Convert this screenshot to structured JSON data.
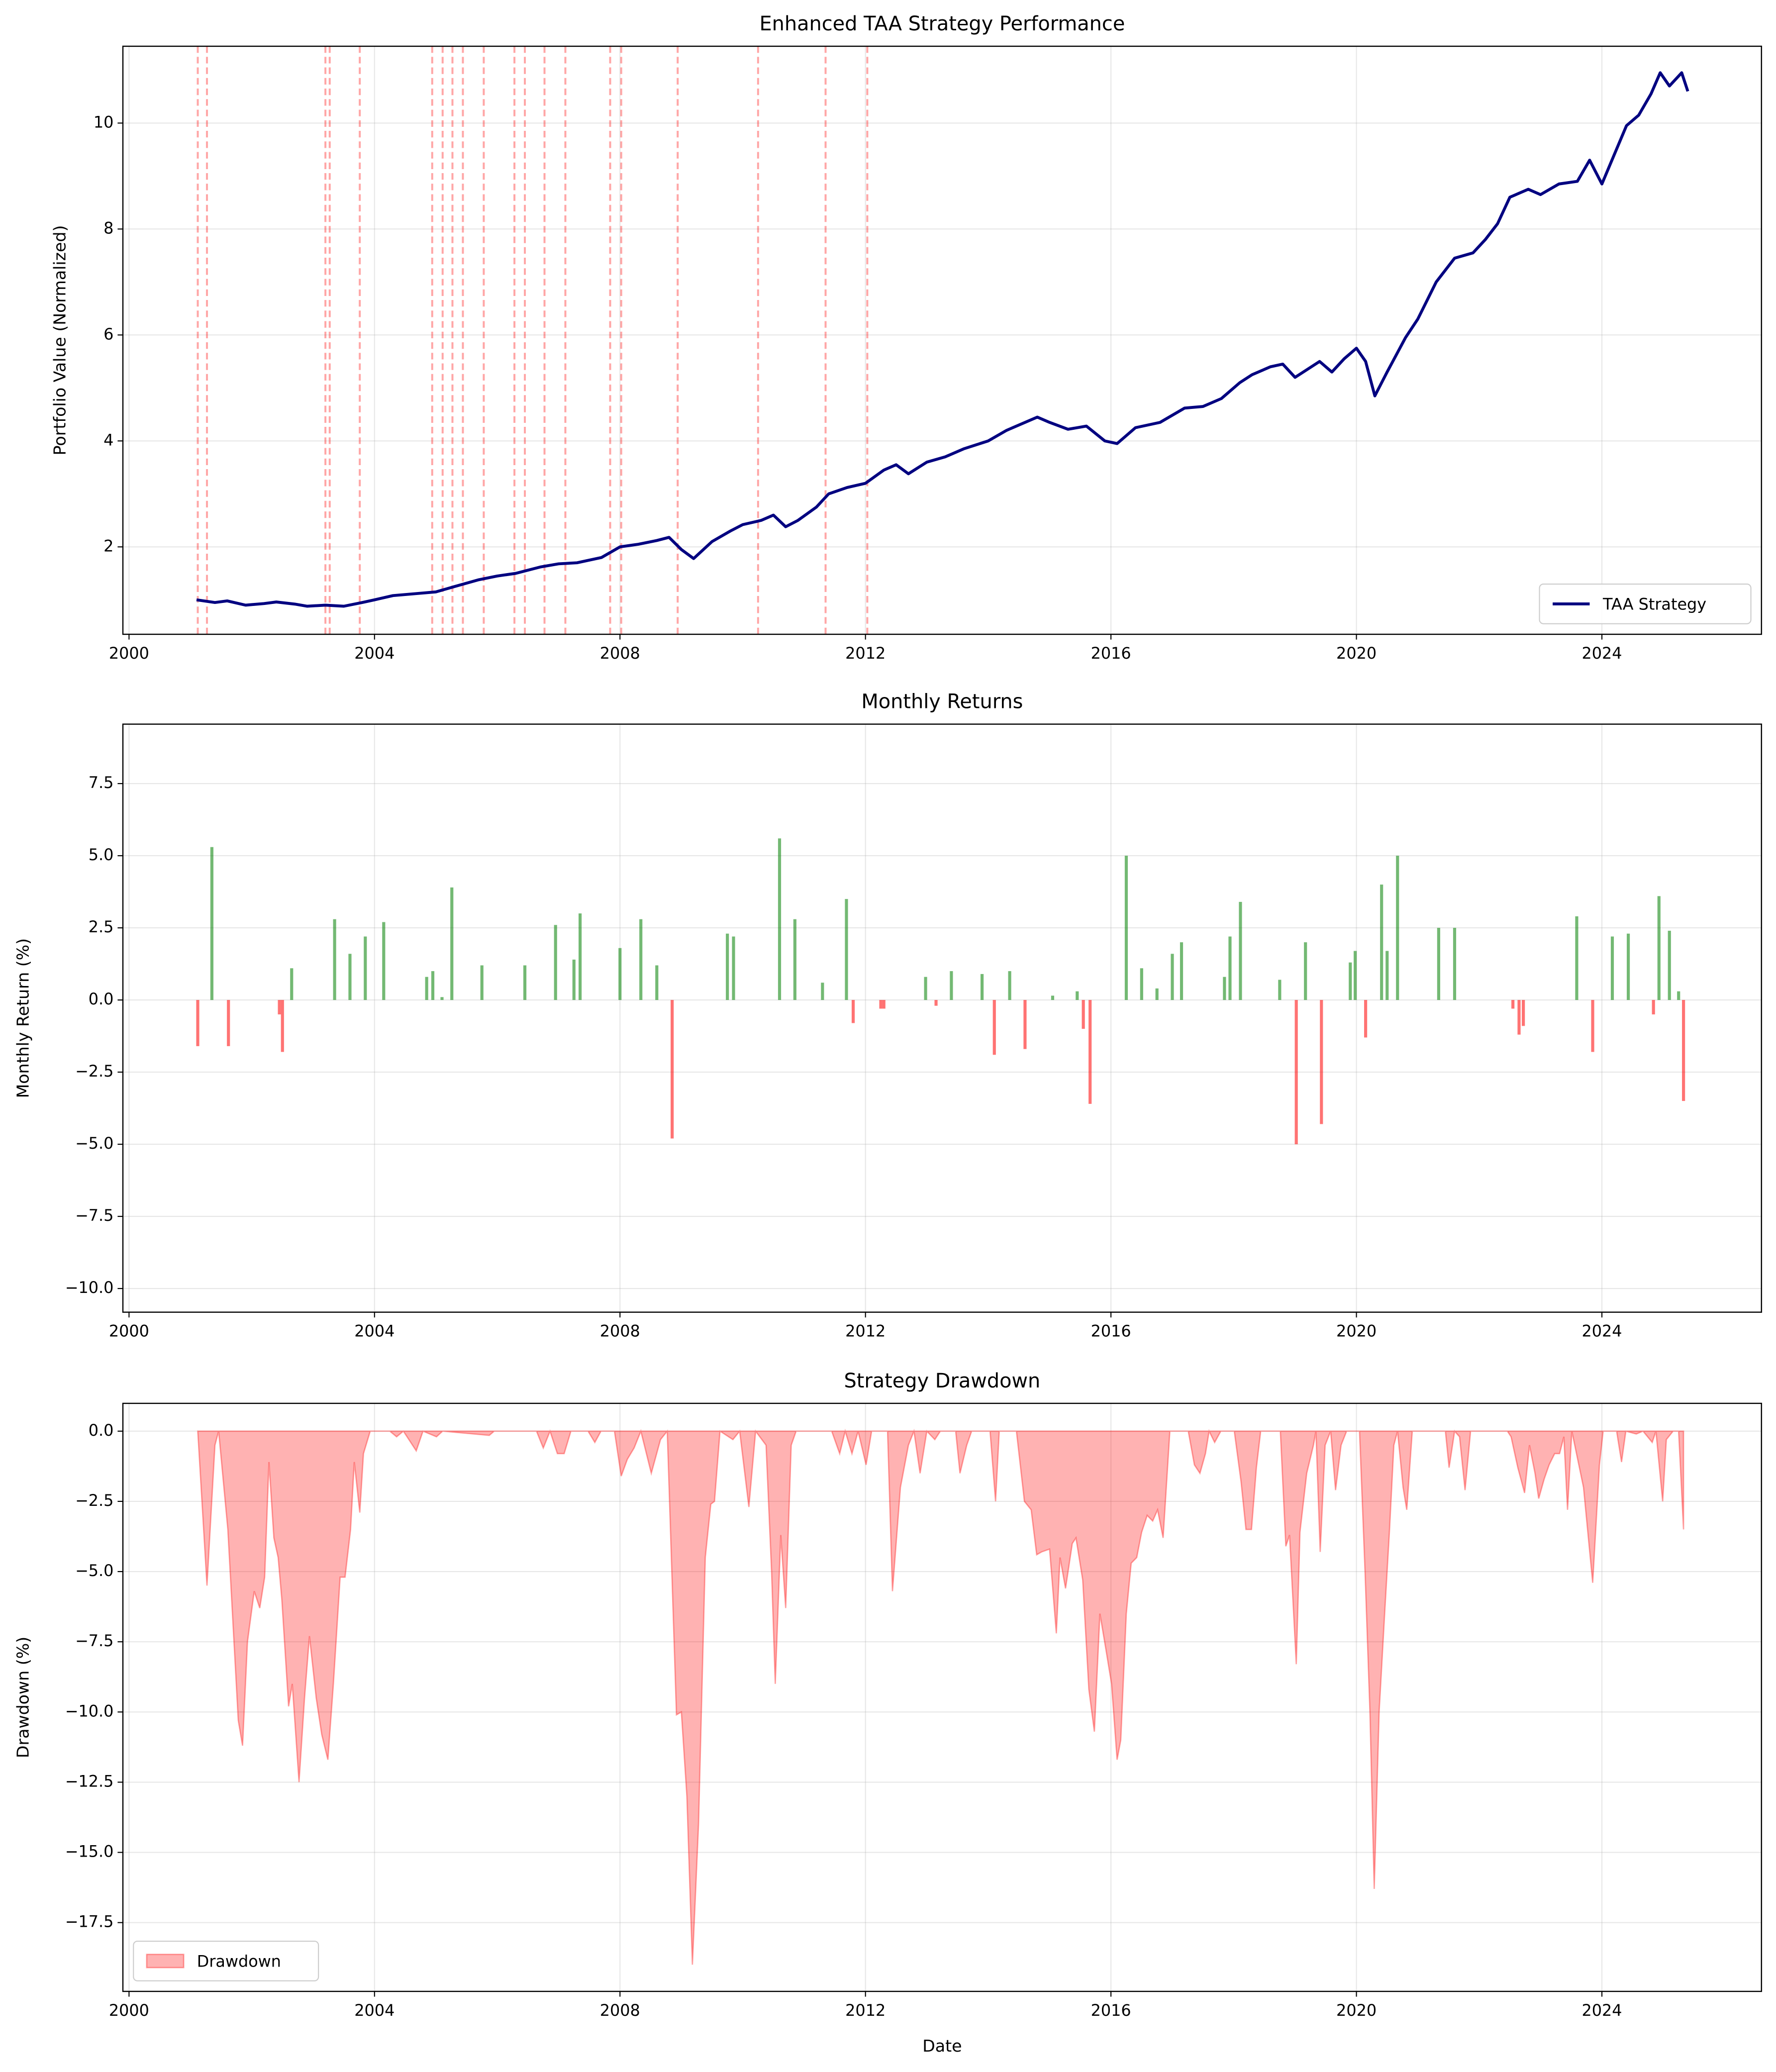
{
  "chart_data": [
    {
      "type": "line",
      "title": "Enhanced TAA Strategy Performance",
      "ylabel": "Portfolio Value (Normalized)",
      "x": [
        2001.1,
        2001.4,
        2001.6,
        2001.9,
        2002.2,
        2002.4,
        2002.7,
        2002.9,
        2003.2,
        2003.5,
        2003.8,
        2004.0,
        2004.3,
        2004.7,
        2005.0,
        2005.3,
        2005.7,
        2006.0,
        2006.3,
        2006.7,
        2007.0,
        2007.3,
        2007.7,
        2008.0,
        2008.3,
        2008.6,
        2008.8,
        2009.0,
        2009.2,
        2009.5,
        2009.8,
        2010.0,
        2010.3,
        2010.5,
        2010.7,
        2010.9,
        2011.2,
        2011.4,
        2011.7,
        2012.0,
        2012.3,
        2012.5,
        2012.7,
        2013.0,
        2013.3,
        2013.6,
        2014.0,
        2014.3,
        2014.6,
        2014.8,
        2015.0,
        2015.3,
        2015.6,
        2015.9,
        2016.1,
        2016.4,
        2016.8,
        2017.2,
        2017.5,
        2017.8,
        2018.1,
        2018.3,
        2018.6,
        2018.8,
        2019.0,
        2019.2,
        2019.4,
        2019.6,
        2019.8,
        2020.0,
        2020.15,
        2020.3,
        2020.5,
        2020.8,
        2021.0,
        2021.3,
        2021.6,
        2021.9,
        2022.1,
        2022.3,
        2022.5,
        2022.8,
        2023.0,
        2023.3,
        2023.6,
        2023.8,
        2024.0,
        2024.2,
        2024.4,
        2024.6,
        2024.8,
        2024.95,
        2025.1,
        2025.3,
        2025.4
      ],
      "series": [
        {
          "name": "TAA Strategy",
          "color": "navy",
          "values": [
            1.0,
            0.95,
            0.98,
            0.9,
            0.93,
            0.96,
            0.92,
            0.88,
            0.9,
            0.88,
            0.95,
            1.0,
            1.08,
            1.12,
            1.15,
            1.25,
            1.38,
            1.45,
            1.5,
            1.62,
            1.68,
            1.7,
            1.8,
            2.0,
            2.05,
            2.12,
            2.18,
            1.95,
            1.78,
            2.1,
            2.3,
            2.42,
            2.5,
            2.6,
            2.38,
            2.5,
            2.75,
            3.0,
            3.12,
            3.2,
            3.45,
            3.55,
            3.38,
            3.6,
            3.7,
            3.85,
            4.0,
            4.2,
            4.35,
            4.45,
            4.35,
            4.22,
            4.28,
            4.0,
            3.95,
            4.25,
            4.35,
            4.62,
            4.65,
            4.8,
            5.1,
            5.25,
            5.4,
            5.45,
            5.2,
            5.35,
            5.5,
            5.3,
            5.55,
            5.75,
            5.5,
            4.85,
            5.3,
            5.95,
            6.3,
            7.0,
            7.45,
            7.55,
            7.8,
            8.1,
            8.6,
            8.75,
            8.65,
            8.85,
            8.9,
            9.3,
            8.85,
            9.4,
            9.95,
            10.15,
            10.55,
            10.95,
            10.7,
            10.95,
            10.6
          ]
        }
      ],
      "vlines": {
        "color": "red",
        "x": [
          2001.12,
          2001.27,
          2003.2,
          2003.27,
          2003.76,
          2004.94,
          2005.11,
          2005.27,
          2005.44,
          2005.78,
          2006.28,
          2006.45,
          2006.77,
          2007.11,
          2007.84,
          2008.02,
          2008.94,
          2010.25,
          2011.35,
          2012.03
        ]
      },
      "xlim": [
        1999.9,
        2026.6
      ],
      "xticks": [
        2000,
        2004,
        2008,
        2012,
        2016,
        2020,
        2024
      ],
      "ylim": [
        0.35,
        11.45
      ],
      "yticks": [
        2,
        4,
        6,
        8,
        10
      ],
      "grid": true,
      "legend": "lower right"
    },
    {
      "type": "bar",
      "title": "Monthly Returns",
      "ylabel": "Monthly Return (%)",
      "positive_color": "green",
      "negative_color": "red",
      "x": [
        2001.12,
        2001.35,
        2001.62,
        2002.45,
        2002.5,
        2002.65,
        2003.35,
        2003.6,
        2003.85,
        2004.15,
        2004.85,
        2004.95,
        2005.1,
        2005.26,
        2005.75,
        2006.45,
        2006.95,
        2007.25,
        2007.35,
        2008.0,
        2008.34,
        2008.6,
        2008.85,
        2009.75,
        2009.85,
        2010.6,
        2010.85,
        2011.3,
        2011.69,
        2011.8,
        2012.25,
        2012.3,
        2012.98,
        2013.15,
        2013.4,
        2013.9,
        2014.1,
        2014.35,
        2014.6,
        2015.05,
        2015.45,
        2015.55,
        2015.66,
        2016.25,
        2016.5,
        2016.75,
        2017.0,
        2017.15,
        2017.85,
        2017.94,
        2018.11,
        2018.75,
        2019.02,
        2019.17,
        2019.43,
        2019.9,
        2019.98,
        2020.15,
        2020.41,
        2020.5,
        2020.67,
        2021.34,
        2021.6,
        2022.55,
        2022.65,
        2022.72,
        2023.59,
        2023.85,
        2024.17,
        2024.43,
        2024.84,
        2024.93,
        2025.1,
        2025.25,
        2025.33
      ],
      "values": [
        -1.6,
        5.3,
        -1.6,
        -0.5,
        -1.8,
        1.1,
        2.8,
        1.6,
        2.2,
        2.7,
        0.8,
        1.0,
        0.1,
        3.9,
        1.2,
        1.2,
        2.6,
        1.4,
        3.0,
        1.8,
        2.8,
        1.2,
        -4.8,
        2.3,
        2.2,
        5.6,
        2.8,
        0.6,
        3.5,
        -0.8,
        -0.3,
        -0.3,
        0.8,
        -0.2,
        1.0,
        0.9,
        -1.9,
        1.0,
        -1.7,
        0.15,
        0.3,
        -1.0,
        -3.6,
        5.0,
        1.1,
        0.4,
        1.6,
        2.0,
        0.8,
        2.2,
        3.4,
        0.7,
        -5.0,
        2.0,
        -4.3,
        1.3,
        1.7,
        -1.3,
        4.0,
        1.7,
        5.0,
        2.5,
        2.5,
        -0.3,
        -1.2,
        -0.9,
        2.9,
        -1.8,
        2.2,
        2.3,
        -0.5,
        3.6,
        2.4,
        0.3,
        -3.5
      ],
      "xlim": [
        1999.9,
        2026.6
      ],
      "xticks": [
        2000,
        2004,
        2008,
        2012,
        2016,
        2020,
        2024
      ],
      "ylim": [
        -10.82,
        9.56
      ],
      "yticks": [
        {
          "value": -10,
          "label": "−10.0"
        },
        {
          "value": -7.5,
          "label": "−7.5"
        },
        {
          "value": -5,
          "label": "−5.0"
        },
        {
          "value": -2.5,
          "label": "−2.5"
        },
        {
          "value": 0,
          "label": "0.0"
        },
        2.5,
        {
          "value": 5,
          "label": "5.0"
        },
        7.5
      ],
      "grid": true
    },
    {
      "type": "area",
      "title": "Strategy Drawdown",
      "ylabel": "Drawdown (%)",
      "xlabel": "Date",
      "x": [
        2001.12,
        2001.27,
        2001.4,
        2001.46,
        2001.61,
        2001.78,
        2001.85,
        2001.93,
        2002.04,
        2002.13,
        2002.21,
        2002.28,
        2002.36,
        2002.43,
        2002.49,
        2002.6,
        2002.66,
        2002.77,
        2002.86,
        2002.94,
        2003.05,
        2003.14,
        2003.24,
        2003.33,
        2003.44,
        2003.52,
        2003.61,
        2003.67,
        2003.76,
        2003.82,
        2003.93,
        2004.25,
        2004.36,
        2004.47,
        2004.68,
        2004.79,
        2005.01,
        2005.11,
        2005.87,
        2005.95,
        2006.64,
        2006.75,
        2006.86,
        2006.98,
        2007.09,
        2007.2,
        2007.48,
        2007.59,
        2007.69,
        2007.91,
        2008.02,
        2008.12,
        2008.23,
        2008.34,
        2008.51,
        2008.66,
        2008.77,
        2008.92,
        2009.0,
        2009.09,
        2009.18,
        2009.28,
        2009.39,
        2009.48,
        2009.54,
        2009.63,
        2009.84,
        2009.95,
        2010.1,
        2010.21,
        2010.38,
        2010.47,
        2010.53,
        2010.62,
        2010.7,
        2010.79,
        2010.87,
        2011.45,
        2011.58,
        2011.67,
        2011.78,
        2011.88,
        2012.01,
        2012.1,
        2012.36,
        2012.44,
        2012.57,
        2012.7,
        2012.79,
        2012.89,
        2013.0,
        2013.13,
        2013.22,
        2013.47,
        2013.54,
        2013.65,
        2013.73,
        2014.03,
        2014.12,
        2014.18,
        2014.46,
        2014.59,
        2014.7,
        2014.79,
        2014.87,
        2015.0,
        2015.11,
        2015.17,
        2015.26,
        2015.37,
        2015.43,
        2015.54,
        2015.64,
        2015.73,
        2015.82,
        2015.92,
        2016.01,
        2016.1,
        2016.16,
        2016.25,
        2016.33,
        2016.42,
        2016.5,
        2016.59,
        2016.68,
        2016.76,
        2016.85,
        2016.96,
        2017.26,
        2017.36,
        2017.45,
        2017.54,
        2017.6,
        2017.69,
        2017.79,
        2018.01,
        2018.12,
        2018.2,
        2018.29,
        2018.37,
        2018.44,
        2018.76,
        2018.85,
        2018.91,
        2019.02,
        2019.08,
        2019.19,
        2019.3,
        2019.34,
        2019.41,
        2019.49,
        2019.58,
        2019.66,
        2019.75,
        2019.84,
        2020.05,
        2020.14,
        2020.22,
        2020.29,
        2020.37,
        2020.46,
        2020.54,
        2020.61,
        2020.67,
        2020.76,
        2020.82,
        2020.91,
        2021.45,
        2021.51,
        2021.6,
        2021.68,
        2021.77,
        2021.86,
        2022.46,
        2022.52,
        2022.63,
        2022.74,
        2022.82,
        2022.91,
        2022.97,
        2023.06,
        2023.14,
        2023.23,
        2023.31,
        2023.38,
        2023.44,
        2023.51,
        2023.7,
        2023.85,
        2023.96,
        2024.02,
        2024.24,
        2024.32,
        2024.39,
        2024.56,
        2024.67,
        2024.82,
        2024.88,
        2024.99,
        2025.05,
        2025.16,
        2025.25,
        2025.33
      ],
      "series": [
        {
          "name": "Drawdown",
          "color": "red",
          "values": [
            0,
            -5.5,
            -0.5,
            0,
            -3.5,
            -10.3,
            -11.2,
            -7.5,
            -5.7,
            -6.3,
            -5.2,
            -1.1,
            -3.8,
            -4.5,
            -6.0,
            -9.8,
            -9.0,
            -12.5,
            -9.5,
            -7.3,
            -9.5,
            -10.8,
            -11.7,
            -9.0,
            -5.2,
            -5.2,
            -3.5,
            -1.1,
            -2.9,
            -0.8,
            0,
            0,
            -0.2,
            0,
            -0.7,
            0,
            -0.2,
            0,
            -0.15,
            0,
            0,
            -0.6,
            0,
            -0.8,
            -0.8,
            0,
            0,
            -0.4,
            0,
            0,
            -1.6,
            -1.0,
            -0.6,
            0,
            -1.5,
            -0.3,
            0,
            -10.1,
            -10.0,
            -13.0,
            -19.0,
            -14.0,
            -4.5,
            -2.6,
            -2.5,
            0,
            -0.3,
            0,
            -2.7,
            0,
            -0.5,
            -5.0,
            -9.0,
            -3.7,
            -6.3,
            -0.5,
            0,
            0,
            -0.8,
            0,
            -0.8,
            0,
            -1.2,
            0,
            0,
            -5.7,
            -2.0,
            -0.5,
            0,
            -1.5,
            0,
            -0.3,
            0,
            0,
            -1.5,
            -0.5,
            0,
            0,
            -2.5,
            0,
            0,
            -2.5,
            -2.8,
            -4.4,
            -4.3,
            -4.2,
            -7.2,
            -4.5,
            -5.6,
            -4.0,
            -3.8,
            -5.3,
            -9.2,
            -10.7,
            -6.5,
            -7.8,
            -9.0,
            -11.7,
            -11.0,
            -6.5,
            -4.7,
            -4.5,
            -3.6,
            -3.0,
            -3.2,
            -2.8,
            -3.8,
            0,
            0,
            -1.2,
            -1.5,
            -0.8,
            0,
            -0.4,
            0,
            0,
            -1.8,
            -3.5,
            -3.5,
            -1.3,
            0,
            0,
            -4.1,
            -3.7,
            -8.3,
            -3.6,
            -1.5,
            -0.5,
            0,
            -4.3,
            -0.5,
            0,
            -2.1,
            -0.5,
            0,
            0,
            -5.0,
            -10.0,
            -16.3,
            -10.0,
            -6.5,
            -3.5,
            -0.5,
            0,
            -2.0,
            -2.8,
            0,
            0,
            -1.3,
            0,
            -0.2,
            -2.1,
            0,
            0,
            -0.2,
            -1.3,
            -2.2,
            -0.5,
            -1.5,
            -2.4,
            -1.7,
            -1.2,
            -0.8,
            -0.8,
            -0.2,
            -2.8,
            0,
            -2.0,
            -5.4,
            -1.2,
            0,
            0,
            -1.1,
            0,
            -0.1,
            0,
            -0.4,
            0,
            -2.5,
            -0.3,
            0,
            0,
            -3.5
          ]
        }
      ],
      "xlim": [
        1999.9,
        2026.6
      ],
      "xticks": [
        2000,
        2004,
        2008,
        2012,
        2016,
        2020,
        2024
      ],
      "ylim": [
        -19.95,
        0.99
      ],
      "yticks": [
        {
          "value": -17.5,
          "label": "−17.5"
        },
        {
          "value": -15,
          "label": "−15.0"
        },
        {
          "value": -12.5,
          "label": "−12.5"
        },
        {
          "value": -10,
          "label": "−10.0"
        },
        {
          "value": -7.5,
          "label": "−7.5"
        },
        {
          "value": -5,
          "label": "−5.0"
        },
        {
          "value": -2.5,
          "label": "−2.5"
        },
        {
          "value": 0,
          "label": "0.0"
        }
      ],
      "grid": true,
      "legend": "lower left"
    }
  ]
}
